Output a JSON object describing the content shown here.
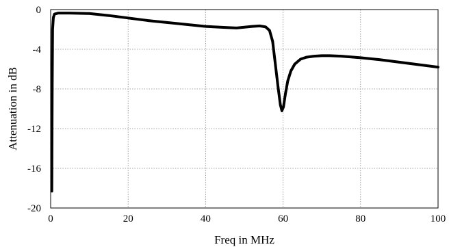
{
  "chart_data": {
    "type": "line",
    "title": "",
    "xlabel": "Freq in MHz",
    "ylabel": "Attenuation in dB",
    "xlim": [
      0,
      100
    ],
    "ylim": [
      -20,
      0
    ],
    "x_ticks": [
      0,
      20,
      40,
      60,
      80,
      100
    ],
    "x_tick_labels": [
      "0",
      "20",
      "40",
      "60",
      "80",
      "100"
    ],
    "y_ticks": [
      0,
      -4,
      -8,
      -12,
      -16,
      -20
    ],
    "y_tick_labels": [
      "0",
      "-4",
      "-8",
      "-12",
      "-16",
      "-20"
    ],
    "grid": true,
    "legend": "none",
    "series": [
      {
        "color": "#000000",
        "x": [
          0.3,
          0.4,
          0.5,
          0.7,
          1,
          2,
          5,
          10,
          15,
          20,
          25,
          30,
          35,
          40,
          45,
          48,
          52,
          54,
          55.5,
          56.5,
          57.3,
          58,
          58.7,
          59.3,
          59.7,
          60.1,
          60.6,
          61.2,
          62,
          63,
          64.5,
          66,
          68,
          70,
          72,
          75,
          80,
          85,
          90,
          95,
          100
        ],
        "y": [
          -18.3,
          -8,
          -2,
          -0.8,
          -0.45,
          -0.35,
          -0.35,
          -0.4,
          -0.6,
          -0.85,
          -1.1,
          -1.3,
          -1.5,
          -1.7,
          -1.8,
          -1.85,
          -1.7,
          -1.65,
          -1.75,
          -2.1,
          -3.2,
          -5.5,
          -7.8,
          -9.6,
          -10.2,
          -9.8,
          -8.5,
          -7.2,
          -6.2,
          -5.5,
          -5.0,
          -4.8,
          -4.7,
          -4.65,
          -4.65,
          -4.7,
          -4.85,
          -5.05,
          -5.3,
          -5.55,
          -5.8
        ]
      }
    ]
  }
}
